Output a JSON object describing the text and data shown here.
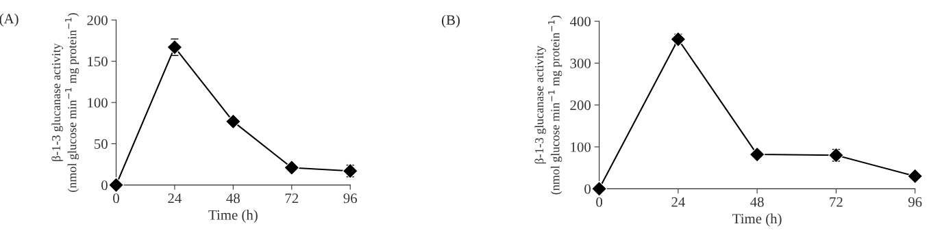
{
  "chart_data": [
    {
      "type": "line",
      "annotations": [
        "(A)"
      ],
      "xlabel": "Time (h)",
      "ylabel": "β-1-3 glucanase activity\n(nmol glucose min$^{−1}$ mg protein$^{−1}$)",
      "x": [
        0,
        24,
        48,
        72,
        96
      ],
      "xlim": [
        0,
        96
      ],
      "xticks": [
        0,
        24,
        48,
        72,
        96
      ],
      "ylim": [
        0,
        200
      ],
      "yticks": [
        0,
        50,
        100,
        150,
        200
      ],
      "series": [
        {
          "color": "#000000",
          "values": [
            0,
            167,
            77,
            21,
            17
          ],
          "errors": [
            null,
            10,
            3,
            3,
            7
          ]
        }
      ],
      "marker": "diamond",
      "line_style": "solid",
      "grid": false,
      "legend": false
    },
    {
      "type": "line",
      "annotations": [
        "(B)"
      ],
      "xlabel": "Time (h)",
      "ylabel": "β-1-3 glucanase activity\n(nmol glucose min$^{−1}$ mg protein$^{−1}$)",
      "x": [
        0,
        24,
        48,
        72,
        96
      ],
      "xlim": [
        0,
        96
      ],
      "xticks": [
        0,
        24,
        48,
        72,
        96
      ],
      "ylim": [
        0,
        400
      ],
      "yticks": [
        0,
        100,
        200,
        300,
        400
      ],
      "series": [
        {
          "color": "#000000",
          "values": [
            0,
            357,
            82,
            80,
            30
          ],
          "errors": [
            null,
            12,
            4,
            14,
            5
          ]
        }
      ],
      "marker": "diamond",
      "line_style": "solid",
      "grid": false,
      "legend": false
    }
  ]
}
